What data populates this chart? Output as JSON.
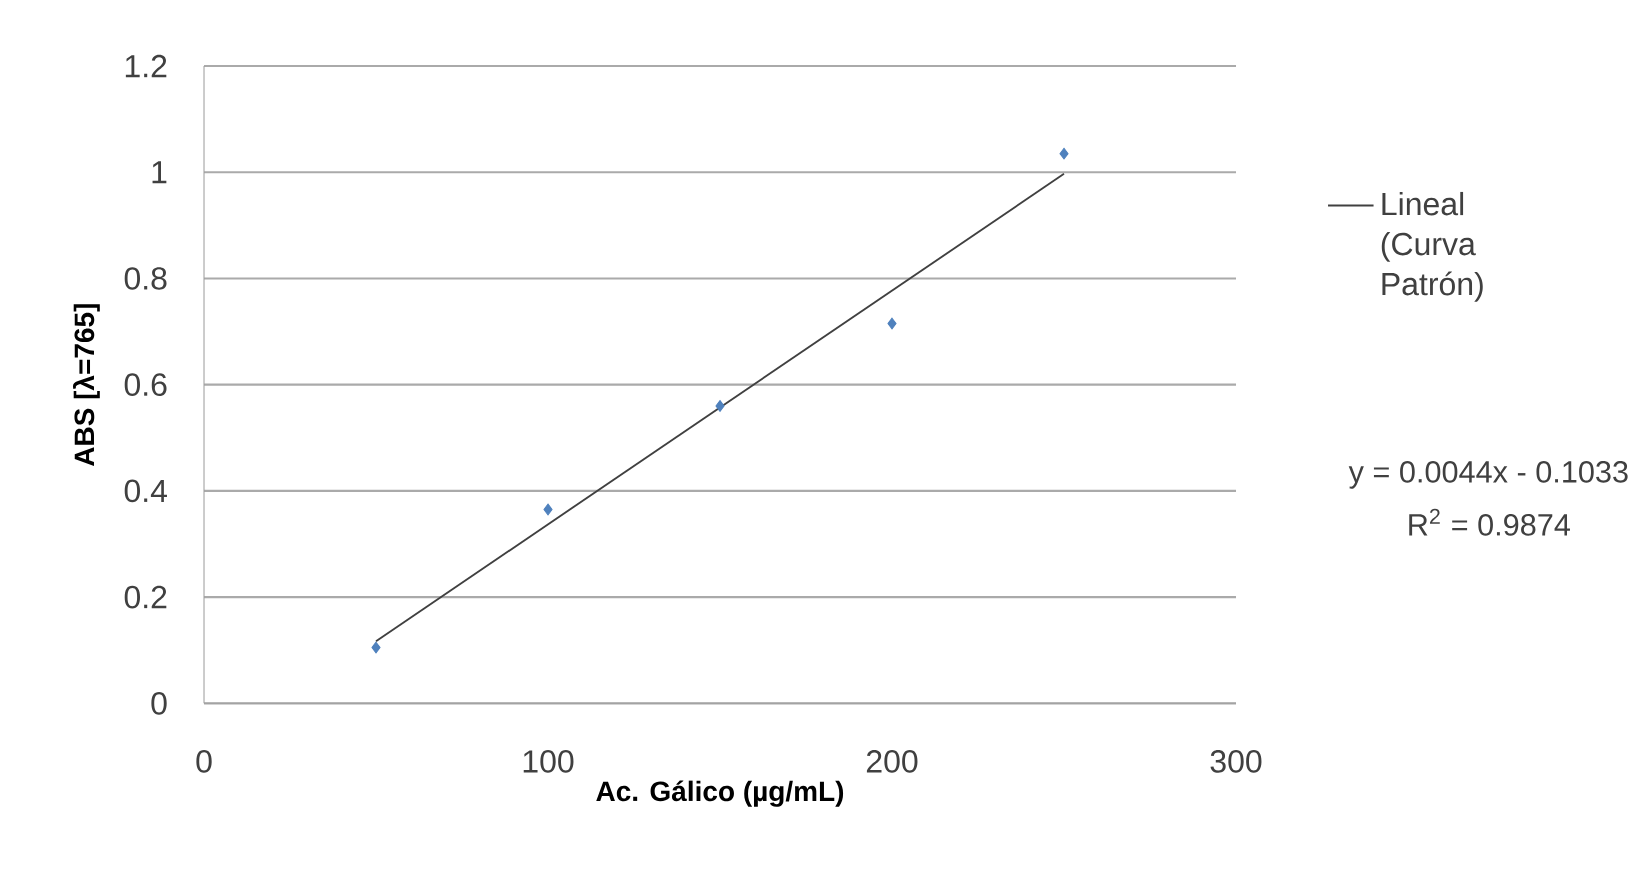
{
  "chart_data": {
    "type": "scatter",
    "xlabel": "Ac. Gálico (µg/mL)",
    "ylabel": "ABS [λ=765]",
    "x": [
      50,
      100,
      150,
      200,
      250
    ],
    "series": [
      {
        "color": "#4f81bd",
        "marker": "diamond",
        "values": [
          0.105,
          0.365,
          0.56,
          0.715,
          1.035
        ]
      },
      {
        "type": "line",
        "name": "Lineal (Curva Patrón)",
        "color": "#404040",
        "marker": "none",
        "line_style": "solid",
        "x": [
          50,
          250
        ],
        "values": [
          0.117,
          0.997
        ]
      }
    ],
    "xlim": [
      0,
      300
    ],
    "xticks": [
      0,
      100,
      200,
      300
    ],
    "ylim": [
      0,
      1.2
    ],
    "yticks": [
      0,
      0.2,
      0.4,
      0.6,
      0.8,
      1,
      1.2
    ],
    "grid": "y",
    "legend": "right",
    "annotations": [
      "y = 0.0044x - 0.1033",
      "R$^{2}$ = 0.9874"
    ]
  }
}
